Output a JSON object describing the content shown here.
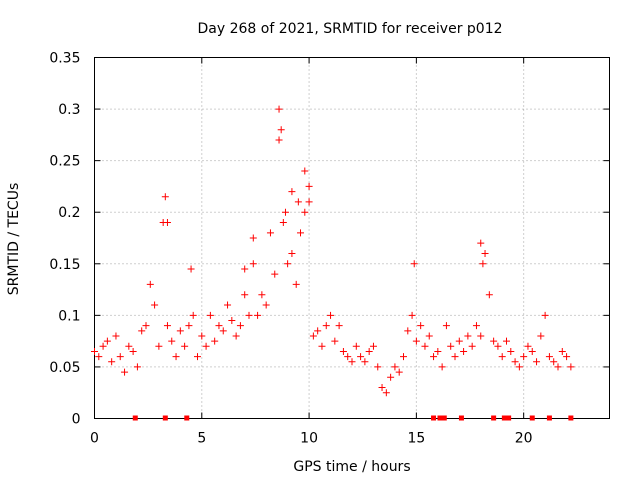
{
  "chart_data": {
    "type": "scatter",
    "title": "Day 268 of 2021, SRMTID for receiver p012",
    "xlabel": "GPS time / hours",
    "ylabel": "SRMTID / TECUs",
    "xlim": [
      0,
      24
    ],
    "ylim": [
      0,
      0.35
    ],
    "x_ticks": [
      0,
      5,
      10,
      15,
      20
    ],
    "y_ticks": [
      0,
      0.05,
      0.1,
      0.15,
      0.2,
      0.25,
      0.3,
      0.35
    ],
    "x_tick_labels": [
      "0",
      "5",
      "10",
      "15",
      "20"
    ],
    "y_tick_labels": [
      "0",
      "0.05",
      "0.1",
      "0.15",
      "0.2",
      "0.25",
      "0.3",
      "0.35"
    ],
    "grid": true,
    "marker": "+",
    "color": "#ff0000",
    "series": [
      {
        "name": "SRMTID",
        "x": [
          0.0,
          0.2,
          0.4,
          0.6,
          0.8,
          1.0,
          1.2,
          1.4,
          1.6,
          1.8,
          2.0,
          2.2,
          2.4,
          2.6,
          2.8,
          3.0,
          3.2,
          3.4,
          3.6,
          3.8,
          4.0,
          4.2,
          4.4,
          4.6,
          4.8,
          5.0,
          5.2,
          5.4,
          5.6,
          5.8,
          6.0,
          6.2,
          6.4,
          6.6,
          6.8,
          7.0,
          7.2,
          7.4,
          7.6,
          7.8,
          8.0,
          8.2,
          8.4,
          8.6,
          8.8,
          9.0,
          9.2,
          9.4,
          9.6,
          9.8,
          10.0,
          10.2,
          10.4,
          10.6,
          10.8,
          11.0,
          11.2,
          11.4,
          11.6,
          11.8,
          12.0,
          12.2,
          12.4,
          12.6,
          12.8,
          13.0,
          13.2,
          13.4,
          13.6,
          13.8,
          14.0,
          14.2,
          14.4,
          14.6,
          14.8,
          15.0,
          15.2,
          15.4,
          15.6,
          15.8,
          16.0,
          16.2,
          16.4,
          16.6,
          16.8,
          17.0,
          17.2,
          17.4,
          17.6,
          17.8,
          18.0,
          18.2,
          18.4,
          18.6,
          18.8,
          19.0,
          19.2,
          19.4,
          19.6,
          19.8,
          20.0,
          20.2,
          20.4,
          20.6,
          20.8,
          21.0,
          21.2,
          21.4,
          21.6,
          21.8,
          22.0,
          22.2,
          3.3,
          3.4,
          8.6,
          8.7,
          9.8,
          10.0,
          18.0,
          18.1,
          14.9,
          4.5,
          7.0,
          7.4,
          8.9,
          9.2,
          9.5
        ],
        "y": [
          0.065,
          0.06,
          0.07,
          0.075,
          0.055,
          0.08,
          0.06,
          0.045,
          0.07,
          0.065,
          0.05,
          0.085,
          0.09,
          0.13,
          0.11,
          0.07,
          0.19,
          0.09,
          0.075,
          0.06,
          0.085,
          0.07,
          0.09,
          0.1,
          0.06,
          0.08,
          0.07,
          0.1,
          0.075,
          0.09,
          0.085,
          0.11,
          0.095,
          0.08,
          0.09,
          0.12,
          0.1,
          0.15,
          0.1,
          0.12,
          0.11,
          0.18,
          0.14,
          0.27,
          0.19,
          0.15,
          0.16,
          0.13,
          0.18,
          0.2,
          0.21,
          0.08,
          0.085,
          0.07,
          0.09,
          0.1,
          0.075,
          0.09,
          0.065,
          0.06,
          0.055,
          0.07,
          0.06,
          0.055,
          0.065,
          0.07,
          0.05,
          0.03,
          0.025,
          0.04,
          0.05,
          0.045,
          0.06,
          0.085,
          0.1,
          0.075,
          0.09,
          0.07,
          0.08,
          0.06,
          0.065,
          0.05,
          0.09,
          0.07,
          0.06,
          0.075,
          0.065,
          0.08,
          0.07,
          0.09,
          0.08,
          0.16,
          0.12,
          0.075,
          0.07,
          0.06,
          0.075,
          0.065,
          0.055,
          0.05,
          0.06,
          0.07,
          0.065,
          0.055,
          0.08,
          0.1,
          0.06,
          0.055,
          0.05,
          0.065,
          0.06,
          0.05,
          0.215,
          0.19,
          0.3,
          0.28,
          0.24,
          0.225,
          0.17,
          0.15,
          0.15,
          0.145,
          0.145,
          0.175,
          0.2,
          0.22,
          0.21
        ]
      }
    ],
    "data_gap_markers_x": [
      1.9,
      3.3,
      4.3,
      15.8,
      16.1,
      16.3,
      17.1,
      18.6,
      19.1,
      19.3,
      20.4,
      21.2,
      22.2
    ]
  }
}
